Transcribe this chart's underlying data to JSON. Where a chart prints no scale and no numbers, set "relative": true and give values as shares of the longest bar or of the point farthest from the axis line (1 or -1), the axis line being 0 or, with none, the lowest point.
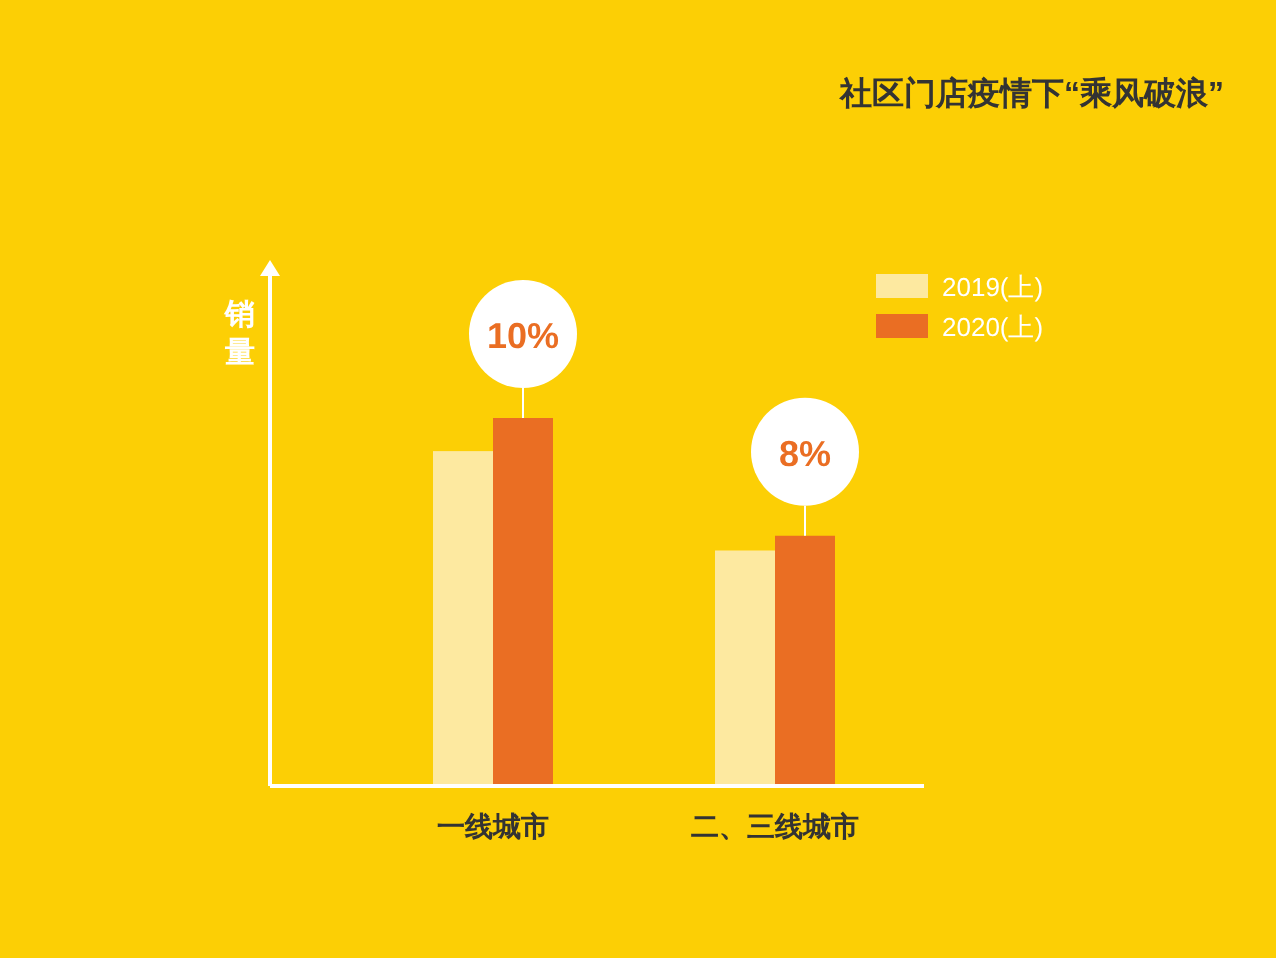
{
  "chart_data": {
    "type": "bar",
    "title": "社区门店疫情下“乘风破浪”",
    "ylabel": "销量",
    "categories": [
      "一线城市",
      "二、三线城市"
    ],
    "relative": true,
    "legend": "top right",
    "series": [
      {
        "name": "2019(上)",
        "color": "#fde9a0",
        "values": [
          0.91,
          0.64
        ]
      },
      {
        "name": "2020(上)",
        "color": "#ea6e23",
        "values": [
          1,
          0.68
        ]
      }
    ],
    "annotations": [
      {
        "text": "10%",
        "x": "一线城市",
        "y": 1
      },
      {
        "text": "8%",
        "x": "二、三线城市",
        "y": 0.68
      }
    ]
  }
}
